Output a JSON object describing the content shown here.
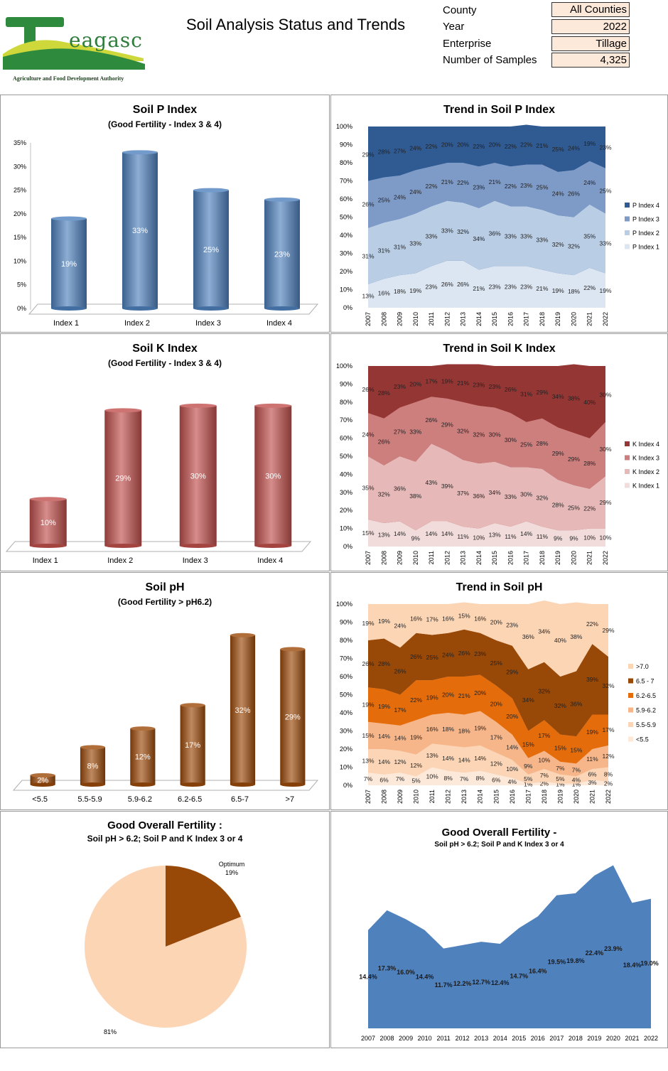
{
  "header": {
    "logo_text": "eagasc",
    "logo_subtitle": "Agriculture and Food Development Authority",
    "title": "Soil Analysis Status and Trends",
    "filters": [
      {
        "label": "County",
        "value": "All Counties"
      },
      {
        "label": "Year",
        "value": "2022"
      },
      {
        "label": "Enterprise",
        "value": "Tillage"
      },
      {
        "label": "Number of Samples",
        "value": "4,325"
      }
    ]
  },
  "colors": {
    "p_bar": "#4f81bd",
    "k_bar": "#c0504d",
    "ph_bar": "#9c4a0a",
    "p_area": [
      "#dce6f2",
      "#b9cde5",
      "#7e9bc8",
      "#2f5a92"
    ],
    "k_area": [
      "#f2dcdb",
      "#e6b9b8",
      "#cd7f7e",
      "#943634"
    ],
    "ph_area": [
      "#fde9d9",
      "#fbd5b5",
      "#f7b68a",
      "#e46c0a",
      "#984807",
      "#fcd5b5"
    ],
    "pie": [
      "#984807",
      "#fcd5b5"
    ],
    "overall_area": "#4f81bd"
  },
  "chart_data": [
    {
      "id": "p_index",
      "type": "bar",
      "title": "Soil P Index",
      "subtitle": "(Good Fertility - Index 3 & 4)",
      "categories": [
        "Index 1",
        "Index 2",
        "Index 3",
        "Index 4"
      ],
      "values": [
        19,
        33,
        25,
        23
      ],
      "ylim": [
        0,
        35
      ],
      "yticks": [
        0,
        5,
        10,
        15,
        20,
        25,
        30,
        35
      ],
      "unit": "%"
    },
    {
      "id": "p_trend",
      "type": "area",
      "stacked": true,
      "title": "Trend in Soil P Index",
      "x": [
        "2007",
        "2008",
        "2009",
        "2010",
        "2011",
        "2012",
        "2013",
        "2014",
        "2015",
        "2016",
        "2017",
        "2018",
        "2019",
        "2020",
        "2021",
        "2022"
      ],
      "ylim": [
        0,
        100
      ],
      "legend_position": "right",
      "series": [
        {
          "name": "P Index 1",
          "values": [
            13,
            16,
            18,
            19,
            23,
            26,
            26,
            21,
            23,
            23,
            23,
            21,
            19,
            18,
            22,
            19
          ]
        },
        {
          "name": "P Index 2",
          "values": [
            31,
            31,
            31,
            33,
            33,
            33,
            32,
            34,
            36,
            33,
            33,
            33,
            32,
            32,
            35,
            33
          ]
        },
        {
          "name": "P Index 3",
          "values": [
            26,
            25,
            24,
            24,
            22,
            21,
            22,
            23,
            21,
            22,
            23,
            25,
            24,
            26,
            24,
            25
          ]
        },
        {
          "name": "P Index 4",
          "values": [
            29,
            28,
            27,
            24,
            22,
            20,
            20,
            22,
            20,
            22,
            22,
            21,
            25,
            24,
            19,
            23
          ]
        }
      ]
    },
    {
      "id": "k_index",
      "type": "bar",
      "title": "Soil K Index",
      "subtitle": "(Good Fertility - Index 3 & 4)",
      "categories": [
        "Index 1",
        "Index 2",
        "Index 3",
        "Index 4"
      ],
      "values": [
        10,
        29,
        30,
        30
      ],
      "ylim": [
        0,
        35
      ],
      "unit": "%"
    },
    {
      "id": "k_trend",
      "type": "area",
      "stacked": true,
      "title": "Trend in Soil K Index",
      "x": [
        "2007",
        "2008",
        "2009",
        "2010",
        "2011",
        "2012",
        "2013",
        "2014",
        "2015",
        "2016",
        "2017",
        "2018",
        "2019",
        "2020",
        "2021",
        "2022"
      ],
      "ylim": [
        0,
        100
      ],
      "legend_position": "right",
      "series": [
        {
          "name": "K Index 1",
          "values": [
            15,
            13,
            14,
            9,
            14,
            14,
            11,
            10,
            13,
            11,
            14,
            11,
            9,
            9,
            10,
            10
          ]
        },
        {
          "name": "K Index 2",
          "values": [
            35,
            32,
            36,
            38,
            43,
            39,
            37,
            36,
            34,
            33,
            30,
            32,
            28,
            25,
            22,
            29
          ]
        },
        {
          "name": "K Index 3",
          "values": [
            24,
            26,
            27,
            33,
            26,
            29,
            32,
            32,
            30,
            30,
            25,
            28,
            29,
            29,
            28,
            30
          ]
        },
        {
          "name": "K Index 4",
          "values": [
            26,
            28,
            23,
            20,
            17,
            19,
            21,
            23,
            23,
            26,
            31,
            29,
            34,
            38,
            40,
            30
          ]
        }
      ]
    },
    {
      "id": "ph",
      "type": "bar",
      "title": "Soil pH",
      "subtitle": "(Good Fertility > pH6.2)",
      "categories": [
        "<5.5",
        "5.5-5.9",
        "5.9-6.2",
        "6.2-6.5",
        "6.5-7",
        ">7"
      ],
      "values": [
        2,
        8,
        12,
        17,
        32,
        29
      ],
      "ylim": [
        0,
        35
      ],
      "unit": "%"
    },
    {
      "id": "ph_trend",
      "type": "area",
      "stacked": true,
      "title": "Trend in Soil pH",
      "x": [
        "2007",
        "2008",
        "2009",
        "2010",
        "2011",
        "2012",
        "2013",
        "2014",
        "2015",
        "2016",
        "2017",
        "2018",
        "2019",
        "2020",
        "2021",
        "2022"
      ],
      "ylim": [
        0,
        100
      ],
      "legend_position": "right",
      "series": [
        {
          "name": "<5.5",
          "values": [
            7,
            6,
            7,
            5,
            10,
            8,
            7,
            8,
            6,
            4,
            1,
            2,
            1,
            1,
            3,
            2
          ]
        },
        {
          "name": "5.5-5.9",
          "values": [
            13,
            14,
            12,
            12,
            13,
            14,
            14,
            14,
            12,
            10,
            5,
            7,
            5,
            4,
            6,
            8
          ]
        },
        {
          "name": "5.9-6.2",
          "values": [
            15,
            14,
            14,
            19,
            16,
            18,
            18,
            19,
            17,
            14,
            9,
            10,
            7,
            7,
            11,
            12
          ]
        },
        {
          "name": "6.2-6.5",
          "values": [
            19,
            19,
            17,
            22,
            19,
            20,
            21,
            20,
            20,
            20,
            15,
            17,
            15,
            15,
            19,
            17
          ]
        },
        {
          "name": "6.5 - 7",
          "values": [
            26,
            28,
            26,
            26,
            25,
            24,
            26,
            23,
            25,
            29,
            34,
            32,
            32,
            36,
            39,
            32
          ]
        },
        {
          "name": ">7.0",
          "values": [
            19,
            19,
            24,
            16,
            17,
            16,
            15,
            16,
            20,
            23,
            36,
            34,
            40,
            38,
            22,
            29
          ]
        }
      ]
    },
    {
      "id": "overall_pie",
      "type": "pie",
      "title": "Good Overall Fertility :",
      "subtitle": "Soil pH > 6.2; Soil P and K Index 3 or 4",
      "slices": [
        {
          "name": "Optimum",
          "value": 19,
          "label": "19%"
        },
        {
          "name": "",
          "value": 81,
          "label": "81%"
        }
      ]
    },
    {
      "id": "overall_trend",
      "type": "area",
      "title": "Good Overall Fertility -",
      "subtitle": "Soil pH > 6.2; Soil P and K Index 3 or 4",
      "x": [
        "2007",
        "2008",
        "2009",
        "2010",
        "2011",
        "2012",
        "2013",
        "2014",
        "2015",
        "2016",
        "2017",
        "2018",
        "2019",
        "2020",
        "2021",
        "2022"
      ],
      "values": [
        14.4,
        17.3,
        16.0,
        14.4,
        11.7,
        12.2,
        12.7,
        12.4,
        14.7,
        16.4,
        19.5,
        19.8,
        22.4,
        23.9,
        18.4,
        19.0
      ],
      "labels": [
        "14.4%",
        "17.3%",
        "16.0%",
        "14.4%",
        "11.7%",
        "12.2%",
        "12.7%",
        "12.4%",
        "14.7%",
        "16.4%",
        "19.5%",
        "19.8%",
        "22.4%",
        "23.9%",
        "18.4%",
        "19.0%"
      ],
      "ylim": [
        0,
        25
      ]
    }
  ]
}
